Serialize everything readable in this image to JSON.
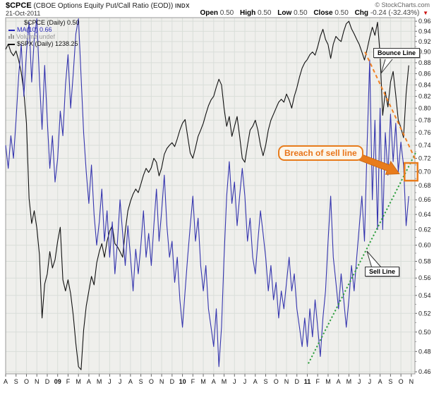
{
  "header": {
    "symbol": "$CPCE",
    "description": "(CBOE Options Equity Put/Call Ratio (EOD))",
    "exchange": "INDX",
    "watermark": "© StockCharts.com",
    "date": "21-Oct-2011",
    "quote": {
      "open_label": "Open",
      "open": "0.50",
      "high_label": "High",
      "high": "0.50",
      "low_label": "Low",
      "low": "0.50",
      "close_label": "Close",
      "close": "0.50",
      "chg_label": "Chg",
      "chg": "-0.24 (-32.43%)"
    }
  },
  "legend": {
    "items": [
      {
        "label": "$CPCE (Daily) 0.50",
        "color": "#111111"
      },
      {
        "label": "MA(10) 0.66",
        "color": "#2424bb"
      },
      {
        "label": "Volume undef",
        "color": "#999999"
      },
      {
        "label": "$SPX (Daily) 1238.25",
        "color": "#111111"
      }
    ]
  },
  "annotations": {
    "bounce_label": "Bounce Line",
    "breach_label": "Breach of sell line",
    "sell_label": "Sell Line"
  },
  "colors": {
    "cpce_line": "#3535ae",
    "spx_line": "#111111",
    "sell_line": "#2e9e3e",
    "bounce_line": "#f08024",
    "highlight": "#e87c1c",
    "grid": "#d9ded9",
    "plot_bg": "#efefec",
    "down_arrow": "#cc1111"
  },
  "chart_data": {
    "type": "line",
    "title": "$CPCE (CBOE Options Equity Put/Call Ratio (EOD)) INDX",
    "x_axis": {
      "unit": "months",
      "start": "Aug-2008",
      "end": "Nov-2011",
      "labels": [
        "A",
        "S",
        "O",
        "N",
        "D",
        "09",
        "F",
        "M",
        "A",
        "M",
        "J",
        "J",
        "A",
        "S",
        "O",
        "N",
        "D",
        "10",
        "F",
        "M",
        "A",
        "M",
        "J",
        "J",
        "A",
        "S",
        "O",
        "N",
        "D",
        "11",
        "F",
        "M",
        "A",
        "M",
        "J",
        "J",
        "A",
        "S",
        "O",
        "N"
      ],
      "year_labels": [
        "09",
        "10",
        "11"
      ]
    },
    "y_axis": {
      "min": 0.46,
      "max": 0.96,
      "tick_step": 0.02,
      "scale": "log",
      "side": "right",
      "grid": true
    },
    "points_per_month": 4,
    "series": [
      {
        "name": "$SPX (Daily)",
        "color": "#111111",
        "last_value": "1238.25",
        "values": [
          0.905,
          0.915,
          0.9,
          0.893,
          0.902,
          0.885,
          0.862,
          0.828,
          0.775,
          0.662,
          0.628,
          0.645,
          0.622,
          0.588,
          0.515,
          0.553,
          0.565,
          0.592,
          0.572,
          0.582,
          0.605,
          0.623,
          0.558,
          0.545,
          0.558,
          0.542,
          0.518,
          0.488,
          0.465,
          0.462,
          0.502,
          0.528,
          0.545,
          0.562,
          0.552,
          0.578,
          0.592,
          0.602,
          0.585,
          0.605,
          0.618,
          0.625,
          0.602,
          0.598,
          0.592,
          0.585,
          0.618,
          0.645,
          0.658,
          0.668,
          0.675,
          0.67,
          0.682,
          0.695,
          0.705,
          0.699,
          0.706,
          0.72,
          0.714,
          0.694,
          0.706,
          0.726,
          0.735,
          0.74,
          0.744,
          0.738,
          0.75,
          0.764,
          0.775,
          0.781,
          0.754,
          0.728,
          0.72,
          0.736,
          0.754,
          0.764,
          0.775,
          0.79,
          0.804,
          0.814,
          0.82,
          0.836,
          0.85,
          0.84,
          0.8,
          0.77,
          0.786,
          0.754,
          0.77,
          0.786,
          0.754,
          0.72,
          0.714,
          0.74,
          0.764,
          0.77,
          0.78,
          0.764,
          0.74,
          0.724,
          0.74,
          0.764,
          0.78,
          0.79,
          0.8,
          0.81,
          0.815,
          0.81,
          0.824,
          0.814,
          0.8,
          0.82,
          0.835,
          0.854,
          0.87,
          0.88,
          0.886,
          0.895,
          0.9,
          0.894,
          0.91,
          0.93,
          0.944,
          0.924,
          0.914,
          0.888,
          0.915,
          0.93,
          0.924,
          0.92,
          0.94,
          0.955,
          0.96,
          0.945,
          0.935,
          0.924,
          0.914,
          0.9,
          0.885,
          0.905,
          0.928,
          0.948,
          0.932,
          0.958,
          0.895,
          0.788,
          0.828,
          0.802,
          0.845,
          0.864,
          0.822,
          0.78,
          0.768,
          0.752,
          0.825,
          0.875
        ]
      },
      {
        "name": "MA(10) of $CPCE",
        "color": "#3535ae",
        "last_value": "0.66",
        "values": [
          0.74,
          0.705,
          0.755,
          0.72,
          0.78,
          0.855,
          0.915,
          0.82,
          0.9,
          0.958,
          0.845,
          0.925,
          0.965,
          0.85,
          0.765,
          0.875,
          0.78,
          0.705,
          0.755,
          0.685,
          0.72,
          0.795,
          0.755,
          0.84,
          0.895,
          0.8,
          0.86,
          0.935,
          0.965,
          0.855,
          0.76,
          0.7,
          0.655,
          0.71,
          0.64,
          0.6,
          0.63,
          0.675,
          0.605,
          0.645,
          0.585,
          0.63,
          0.565,
          0.605,
          0.66,
          0.615,
          0.575,
          0.625,
          0.585,
          0.545,
          0.595,
          0.565,
          0.6,
          0.645,
          0.585,
          0.615,
          0.575,
          0.625,
          0.675,
          0.605,
          0.645,
          0.695,
          0.625,
          0.585,
          0.605,
          0.555,
          0.585,
          0.535,
          0.505,
          0.545,
          0.585,
          0.625,
          0.665,
          0.605,
          0.635,
          0.575,
          0.545,
          0.575,
          0.525,
          0.505,
          0.485,
          0.525,
          0.465,
          0.505,
          0.585,
          0.665,
          0.715,
          0.655,
          0.685,
          0.625,
          0.665,
          0.705,
          0.665,
          0.605,
          0.635,
          0.585,
          0.565,
          0.605,
          0.645,
          0.615,
          0.585,
          0.545,
          0.575,
          0.535,
          0.555,
          0.515,
          0.545,
          0.525,
          0.555,
          0.585,
          0.545,
          0.565,
          0.525,
          0.505,
          0.485,
          0.515,
          0.485,
          0.525,
          0.495,
          0.535,
          0.505,
          0.475,
          0.515,
          0.545,
          0.605,
          0.665,
          0.585,
          0.555,
          0.525,
          0.565,
          0.535,
          0.505,
          0.535,
          0.575,
          0.545,
          0.585,
          0.625,
          0.665,
          0.605,
          0.74,
          0.885,
          0.66,
          0.78,
          0.62,
          0.8,
          0.62,
          0.76,
          0.695,
          0.79,
          0.715,
          0.775,
          0.7,
          0.745,
          0.71,
          0.625,
          0.665
        ]
      }
    ],
    "trendlines": [
      {
        "name": "sell-line",
        "label": "Sell Line",
        "color": "#2e9e3e",
        "style": "dotted",
        "from": {
          "month": 29.1,
          "value": 0.468
        },
        "to": {
          "month": 39.5,
          "value": 0.731
        }
      },
      {
        "name": "bounce-line",
        "label": "Bounce Line",
        "color": "#f08024",
        "style": "dashed",
        "from": {
          "month": 34.55,
          "value": 0.9
        },
        "to": {
          "month": 39.4,
          "value": 0.718
        }
      }
    ],
    "highlight_box": {
      "name": "breach-box",
      "color": "#e87c1c",
      "month_from": 38.35,
      "month_to": 39.6,
      "value_from": 0.687,
      "value_to": 0.713
    },
    "ohlc": {
      "open": 0.5,
      "high": 0.5,
      "low": 0.5,
      "close": 0.5,
      "chg": -0.24,
      "chg_pct": -32.43
    }
  }
}
